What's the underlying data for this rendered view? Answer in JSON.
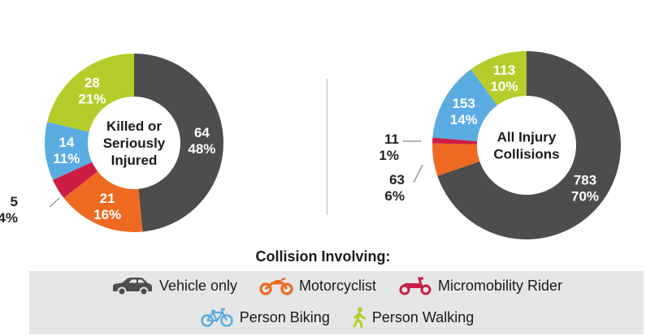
{
  "chart_data": [
    {
      "type": "pie",
      "variant": "donut",
      "center_label": [
        "Killed or",
        "Seriously",
        "Injured"
      ],
      "slices": [
        {
          "category": "Vehicle only",
          "count": "64",
          "percent": "48%",
          "value": 64,
          "color": "#4d4d4f",
          "label_pos": "inside"
        },
        {
          "category": "Motorcyclist",
          "count": "21",
          "percent": "16%",
          "value": 21,
          "color": "#ee6a20",
          "label_pos": "inside"
        },
        {
          "category": "Micromobility Rider",
          "count": "5",
          "percent": "4%",
          "value": 5,
          "color": "#cc1e45",
          "label_pos": "outside"
        },
        {
          "category": "Person Biking",
          "count": "14",
          "percent": "11%",
          "value": 14,
          "color": "#5aace2",
          "label_pos": "inside"
        },
        {
          "category": "Person Walking",
          "count": "28",
          "percent": "21%",
          "value": 28,
          "color": "#b5cc2a",
          "label_pos": "inside"
        }
      ]
    },
    {
      "type": "pie",
      "variant": "donut",
      "center_label": [
        "All Injury",
        "Collisions"
      ],
      "slices": [
        {
          "category": "Vehicle only",
          "count": "783",
          "percent": "70%",
          "value": 783,
          "color": "#4d4d4f",
          "label_pos": "inside"
        },
        {
          "category": "Motorcyclist",
          "count": "63",
          "percent": "6%",
          "value": 63,
          "color": "#ee6a20",
          "label_pos": "outside"
        },
        {
          "category": "Micromobility Rider",
          "count": "11",
          "percent": "1%",
          "value": 11,
          "color": "#cc1e45",
          "label_pos": "outside"
        },
        {
          "category": "Person Biking",
          "count": "153",
          "percent": "14%",
          "value": 153,
          "color": "#5aace2",
          "label_pos": "inside"
        },
        {
          "category": "Person Walking",
          "count": "113",
          "percent": "10%",
          "value": 113,
          "color": "#b5cc2a",
          "label_pos": "inside"
        }
      ]
    }
  ],
  "legend": {
    "title": "Collision Involving:",
    "items": [
      {
        "label": "Vehicle only",
        "icon": "car-icon",
        "color": "#4d4d4f"
      },
      {
        "label": "Motorcyclist",
        "icon": "motorcycle-icon",
        "color": "#ee6a20"
      },
      {
        "label": "Micromobility Rider",
        "icon": "scooter-icon",
        "color": "#cc1e45"
      },
      {
        "label": "Person Biking",
        "icon": "bicycle-icon",
        "color": "#5aace2"
      },
      {
        "label": "Person Walking",
        "icon": "pedestrian-icon",
        "color": "#b5cc2a"
      }
    ]
  }
}
